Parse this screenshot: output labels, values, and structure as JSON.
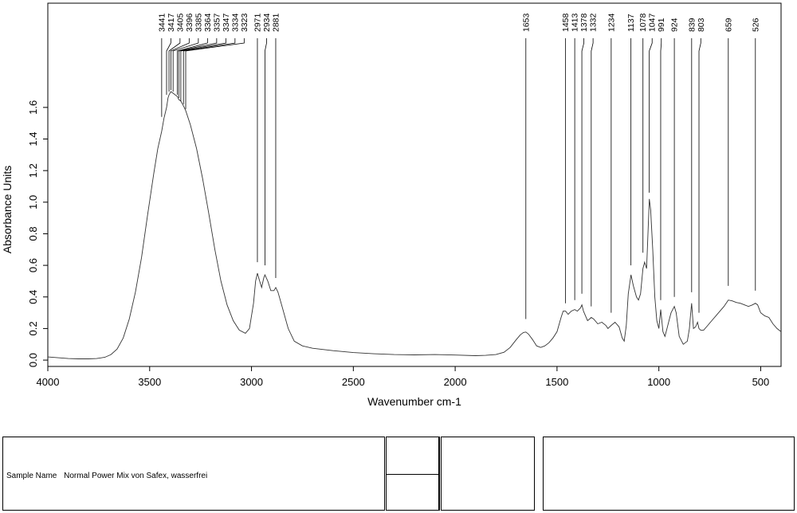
{
  "chart_data": {
    "type": "line",
    "title": "",
    "xlabel": "Wavenumber cm-1",
    "ylabel": "Absorbance Units",
    "xlim": [
      4000,
      400
    ],
    "ylim": [
      -0.04,
      2.26
    ],
    "x_reversed": true,
    "x_ticks": [
      4000,
      3500,
      3000,
      2500,
      2000,
      1500,
      1000,
      500
    ],
    "y_ticks": [
      0.0,
      0.2,
      0.4,
      0.6,
      0.8,
      1.0,
      1.2,
      1.4,
      1.6
    ],
    "y_tick_labels": [
      "0.0",
      "0.2",
      "0.4",
      "0.6",
      "0.8",
      "1.0",
      "1.2",
      "1.4",
      "1.6"
    ],
    "series": [
      {
        "x": [
          4000,
          3900,
          3850,
          3800,
          3760,
          3720,
          3690,
          3660,
          3630,
          3600,
          3570,
          3540,
          3510,
          3480,
          3460,
          3441,
          3430,
          3417,
          3410,
          3405,
          3396,
          3385,
          3375,
          3364,
          3357,
          3347,
          3334,
          3323,
          3300,
          3270,
          3240,
          3210,
          3180,
          3150,
          3120,
          3090,
          3060,
          3030,
          3010,
          2990,
          2980,
          2971,
          2960,
          2950,
          2940,
          2934,
          2920,
          2905,
          2890,
          2881,
          2870,
          2850,
          2820,
          2790,
          2750,
          2700,
          2600,
          2500,
          2400,
          2300,
          2200,
          2100,
          2000,
          1900,
          1850,
          1800,
          1760,
          1730,
          1700,
          1680,
          1665,
          1653,
          1640,
          1620,
          1600,
          1580,
          1560,
          1540,
          1520,
          1500,
          1480,
          1470,
          1458,
          1445,
          1430,
          1413,
          1400,
          1385,
          1378,
          1370,
          1350,
          1340,
          1332,
          1320,
          1300,
          1280,
          1260,
          1250,
          1234,
          1215,
          1195,
          1180,
          1170,
          1160,
          1150,
          1137,
          1125,
          1110,
          1100,
          1090,
          1078,
          1070,
          1060,
          1047,
          1040,
          1030,
          1020,
          1010,
          1000,
          991,
          980,
          970,
          960,
          950,
          940,
          924,
          915,
          900,
          880,
          860,
          850,
          845,
          839,
          830,
          820,
          810,
          803,
          795,
          780,
          760,
          740,
          720,
          700,
          680,
          659,
          640,
          620,
          600,
          580,
          560,
          540,
          526,
          515,
          500,
          480,
          460,
          440,
          420,
          400
        ],
        "y": [
          0.02,
          0.01,
          0.008,
          0.008,
          0.01,
          0.018,
          0.035,
          0.07,
          0.14,
          0.26,
          0.43,
          0.65,
          0.92,
          1.18,
          1.34,
          1.45,
          1.53,
          1.6,
          1.66,
          1.68,
          1.7,
          1.69,
          1.68,
          1.67,
          1.65,
          1.64,
          1.61,
          1.58,
          1.49,
          1.34,
          1.15,
          0.93,
          0.7,
          0.5,
          0.35,
          0.25,
          0.19,
          0.17,
          0.2,
          0.36,
          0.5,
          0.55,
          0.5,
          0.46,
          0.52,
          0.54,
          0.5,
          0.44,
          0.44,
          0.46,
          0.43,
          0.34,
          0.2,
          0.12,
          0.09,
          0.075,
          0.06,
          0.048,
          0.04,
          0.035,
          0.033,
          0.035,
          0.032,
          0.028,
          0.03,
          0.035,
          0.05,
          0.08,
          0.13,
          0.16,
          0.175,
          0.178,
          0.165,
          0.13,
          0.09,
          0.08,
          0.09,
          0.11,
          0.14,
          0.18,
          0.27,
          0.31,
          0.31,
          0.29,
          0.31,
          0.32,
          0.31,
          0.33,
          0.35,
          0.31,
          0.25,
          0.26,
          0.27,
          0.26,
          0.23,
          0.24,
          0.22,
          0.2,
          0.22,
          0.24,
          0.21,
          0.14,
          0.12,
          0.22,
          0.42,
          0.54,
          0.47,
          0.4,
          0.38,
          0.42,
          0.58,
          0.62,
          0.58,
          1.02,
          0.95,
          0.7,
          0.4,
          0.25,
          0.2,
          0.32,
          0.18,
          0.15,
          0.2,
          0.25,
          0.3,
          0.34,
          0.3,
          0.15,
          0.1,
          0.12,
          0.2,
          0.28,
          0.36,
          0.2,
          0.21,
          0.24,
          0.2,
          0.19,
          0.19,
          0.22,
          0.25,
          0.28,
          0.31,
          0.34,
          0.38,
          0.375,
          0.365,
          0.36,
          0.35,
          0.34,
          0.35,
          0.36,
          0.35,
          0.3,
          0.28,
          0.27,
          0.23,
          0.2,
          0.18
        ]
      }
    ],
    "peaks": [
      {
        "wn": 3441,
        "y": 1.54,
        "label": "3441"
      },
      {
        "wn": 3417,
        "y": 1.68,
        "label": "3417"
      },
      {
        "wn": 3405,
        "y": 1.7,
        "label": "3405"
      },
      {
        "wn": 3396,
        "y": 1.71,
        "label": "3396"
      },
      {
        "wn": 3385,
        "y": 1.7,
        "label": "3385"
      },
      {
        "wn": 3364,
        "y": 1.68,
        "label": "3364"
      },
      {
        "wn": 3357,
        "y": 1.66,
        "label": "3357"
      },
      {
        "wn": 3347,
        "y": 1.64,
        "label": "3347"
      },
      {
        "wn": 3334,
        "y": 1.62,
        "label": "3334"
      },
      {
        "wn": 3323,
        "y": 1.59,
        "label": "3323"
      },
      {
        "wn": 2971,
        "y": 0.62,
        "label": "2971"
      },
      {
        "wn": 2934,
        "y": 0.6,
        "label": "2934"
      },
      {
        "wn": 2881,
        "y": 0.52,
        "label": "2881"
      },
      {
        "wn": 1653,
        "y": 0.26,
        "label": "1653"
      },
      {
        "wn": 1458,
        "y": 0.36,
        "label": "1458"
      },
      {
        "wn": 1413,
        "y": 0.38,
        "label": "1413"
      },
      {
        "wn": 1378,
        "y": 0.42,
        "label": "1378"
      },
      {
        "wn": 1332,
        "y": 0.34,
        "label": "1332"
      },
      {
        "wn": 1234,
        "y": 0.3,
        "label": "1234"
      },
      {
        "wn": 1137,
        "y": 0.6,
        "label": "1137"
      },
      {
        "wn": 1078,
        "y": 0.68,
        "label": "1078"
      },
      {
        "wn": 1047,
        "y": 1.06,
        "label": "1047"
      },
      {
        "wn": 991,
        "y": 0.38,
        "label": "991"
      },
      {
        "wn": 924,
        "y": 0.4,
        "label": "924"
      },
      {
        "wn": 839,
        "y": 0.43,
        "label": "839"
      },
      {
        "wn": 803,
        "y": 0.3,
        "label": "803"
      },
      {
        "wn": 659,
        "y": 0.47,
        "label": "659"
      },
      {
        "wn": 526,
        "y": 0.44,
        "label": "526"
      }
    ],
    "grid": false,
    "legend": "none"
  },
  "footer": {
    "sample_label": "Sample Name",
    "sample_value": "Normal Power Mix von Safex, wasserfrei"
  }
}
